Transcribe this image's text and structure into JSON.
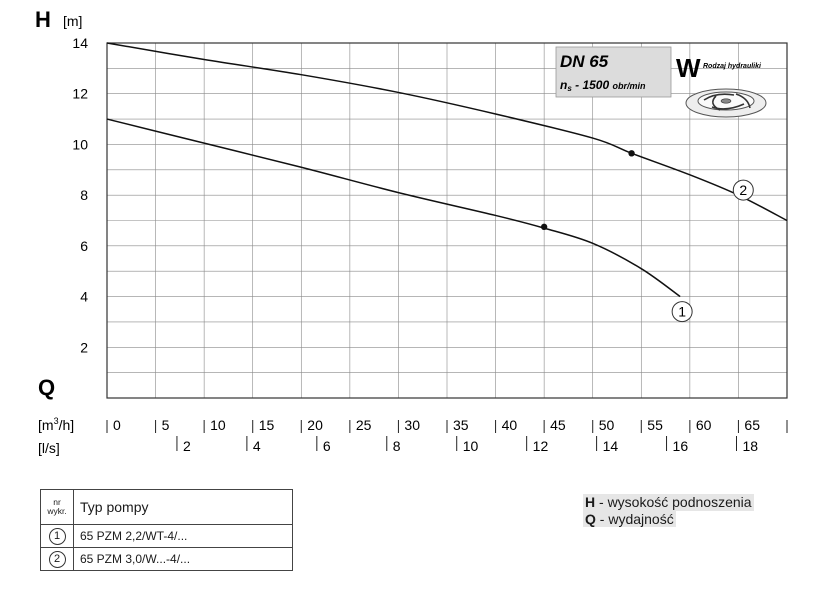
{
  "chart_data": {
    "type": "line",
    "y_axis": {
      "symbol": "H",
      "unit": "[m]",
      "range": [
        0,
        14
      ],
      "ticks": [
        2,
        4,
        6,
        8,
        10,
        12,
        14
      ]
    },
    "x_axis_primary": {
      "symbol": "Q",
      "unit_prefix": "[m",
      "unit_sup": "3",
      "unit_suffix": "/h]",
      "range": [
        0,
        70
      ],
      "ticks": [
        0,
        5,
        10,
        15,
        20,
        25,
        30,
        35,
        40,
        45,
        50,
        55,
        60,
        65
      ]
    },
    "x_axis_secondary": {
      "unit": "[l/s]",
      "ticks": [
        2,
        4,
        6,
        8,
        10,
        12,
        14,
        16,
        18
      ]
    },
    "grid": true,
    "series": [
      {
        "name": "1",
        "x": [
          0,
          10,
          20,
          30,
          40,
          45,
          50,
          55,
          59
        ],
        "y": [
          11,
          10.05,
          9.1,
          8.1,
          7.2,
          6.7,
          6.1,
          5.1,
          4.0
        ],
        "marker_point": [
          45,
          6.75
        ]
      },
      {
        "name": "2",
        "x": [
          0,
          10,
          20,
          30,
          40,
          50,
          54,
          60,
          65,
          70
        ],
        "y": [
          14,
          13.35,
          12.75,
          12.05,
          11.2,
          10.25,
          9.65,
          8.8,
          8.0,
          7.0
        ],
        "marker_point": [
          54,
          9.65
        ]
      }
    ],
    "info_box": {
      "title": "DN 65",
      "ns_label": "n",
      "ns_sub": "s",
      "ns_value": " - 1500 ",
      "ns_unit": "obr/min"
    },
    "hydraulics": {
      "letter": "W",
      "label": "Rodzaj hydrauliki"
    }
  },
  "table": {
    "header_nr_line1": "nr",
    "header_nr_line2": "wykr.",
    "header_typ": "Typ pompy",
    "rows": [
      {
        "nr": "1",
        "typ": "65 PZM 2,2/WT-4/..."
      },
      {
        "nr": "2",
        "typ": "65 PZM 3,0/W...-4/..."
      }
    ]
  },
  "info": {
    "h_key": "H",
    "h_text": " - wysokość podnoszenia",
    "q_key": "Q",
    "q_text": " - wydajność"
  }
}
